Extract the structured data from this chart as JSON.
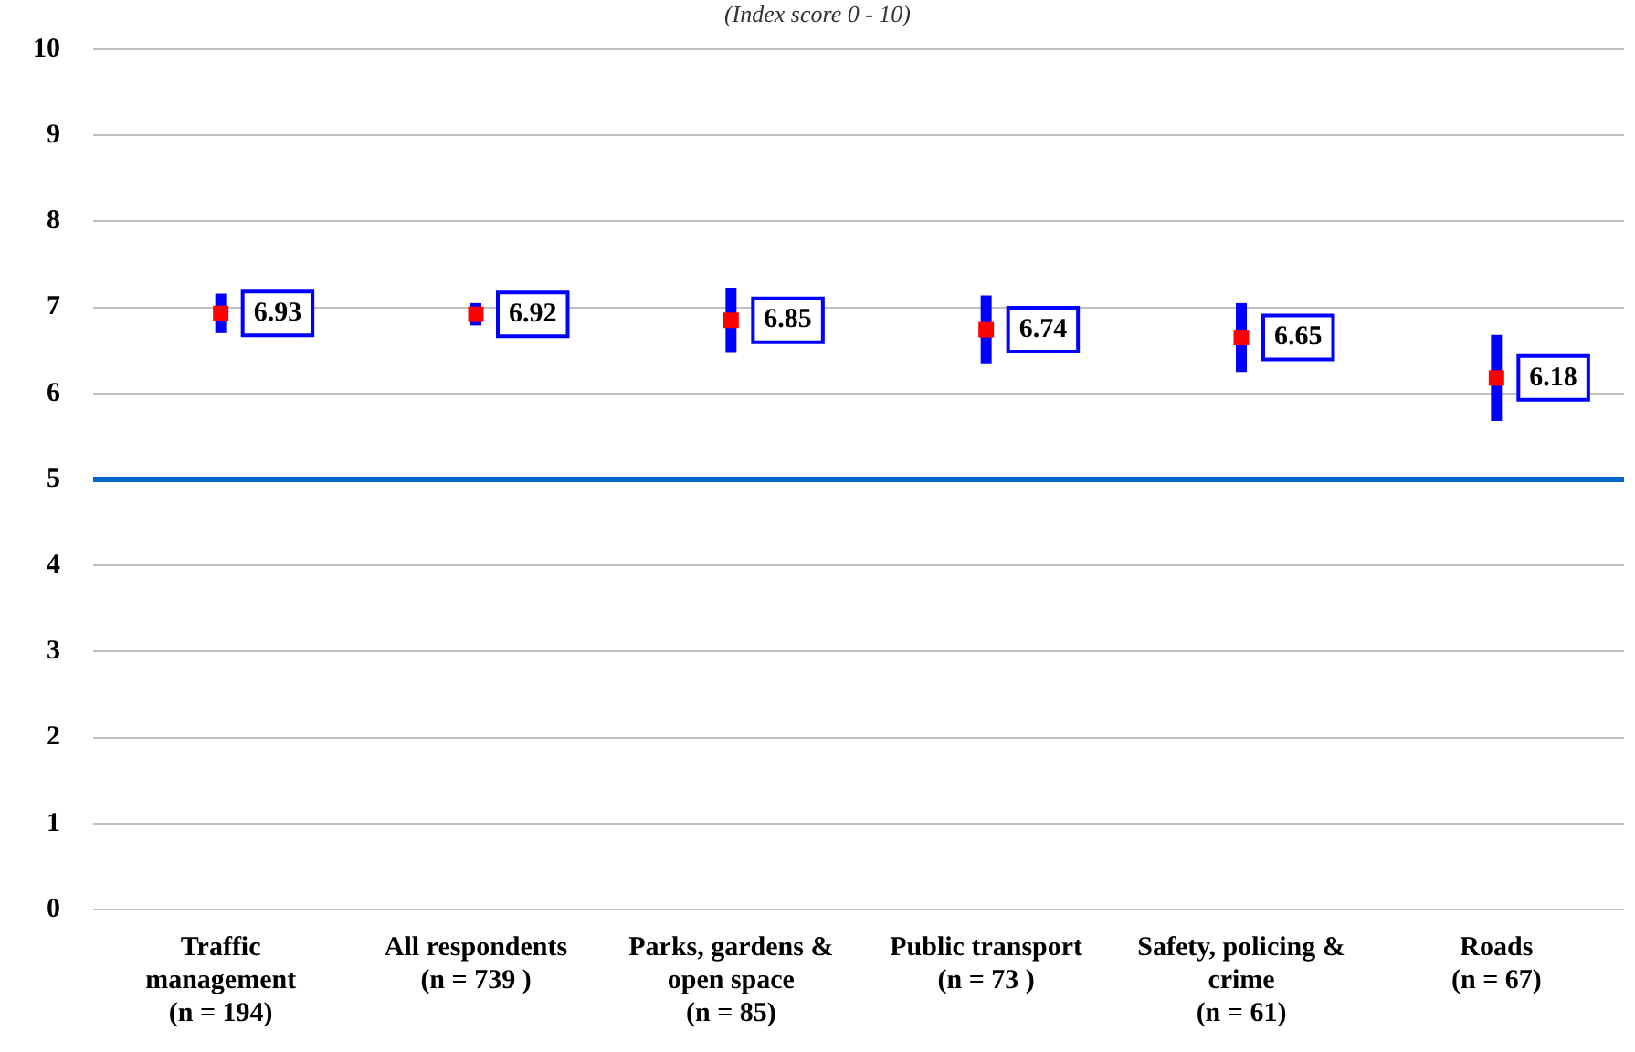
{
  "chart_data": {
    "type": "scatter",
    "subtitle": "(Index score 0 - 10)",
    "categories": [
      "Traffic\nmanagement\n(n = 194)",
      "All respondents\n(n = 739 )",
      "Parks, gardens &\nopen space\n(n = 85)",
      "Public transport\n(n = 73 )",
      "Safety, policing &\ncrime\n(n = 61)",
      "Roads\n(n = 67)"
    ],
    "series": [
      {
        "color": "#ff0000",
        "values": [
          6.93,
          6.92,
          6.85,
          6.74,
          6.65,
          6.18
        ],
        "errors": [
          0.23,
          0.13,
          0.38,
          0.4,
          0.4,
          0.5
        ]
      }
    ],
    "ylim": [
      0,
      10
    ],
    "yticks": [
      0,
      1,
      2,
      3,
      4,
      5,
      6,
      7,
      8,
      9,
      10
    ],
    "grid": "y",
    "legend": false,
    "marker": "square",
    "data_labels": true,
    "ref_lines": [
      {
        "axis": "y",
        "value": 5,
        "color": "#0066cc"
      }
    ]
  }
}
